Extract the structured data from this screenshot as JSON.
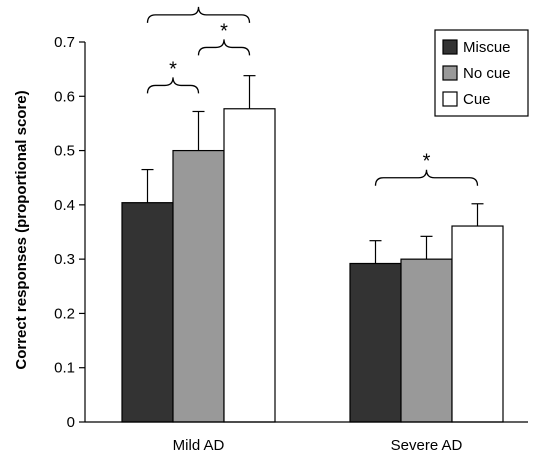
{
  "chart_data": {
    "type": "bar",
    "title": "",
    "xlabel": "",
    "ylabel": "Correct responses (proportional score)",
    "ylim": [
      0,
      0.7
    ],
    "yticks": [
      "0",
      "0.1",
      "0.2",
      "0.3",
      "0.4",
      "0.5",
      "0.6",
      "0.7"
    ],
    "grid": false,
    "legend_position": "top-right",
    "categories": [
      "Mild AD",
      "Severe AD"
    ],
    "series": [
      {
        "name": "Miscue",
        "color": "#333333",
        "values": [
          0.404,
          0.292
        ],
        "errors": [
          0.061,
          0.042
        ]
      },
      {
        "name": "No cue",
        "color": "#999999",
        "values": [
          0.5,
          0.3
        ],
        "errors": [
          0.072,
          0.042
        ]
      },
      {
        "name": "Cue",
        "color": "#ffffff",
        "values": [
          0.577,
          0.361
        ],
        "errors": [
          0.061,
          0.041
        ]
      }
    ],
    "significance": [
      {
        "category": 0,
        "from_series": 0,
        "to_series": 1,
        "level": 0.62,
        "label": "*"
      },
      {
        "category": 0,
        "from_series": 1,
        "to_series": 2,
        "level": 0.69,
        "label": "*"
      },
      {
        "category": 0,
        "from_series": 0,
        "to_series": 2,
        "level": 0.75,
        "label": "*"
      },
      {
        "category": 1,
        "from_series": 0,
        "to_series": 2,
        "level": 0.45,
        "label": "*"
      }
    ]
  }
}
